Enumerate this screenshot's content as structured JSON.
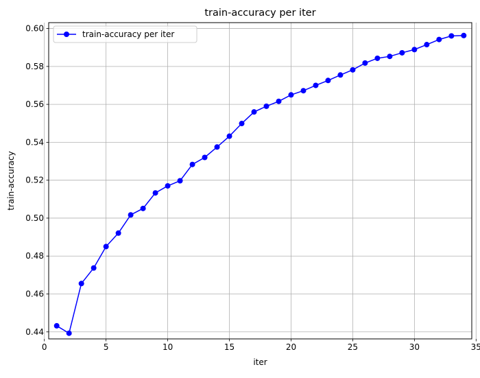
{
  "chart_data": {
    "type": "line",
    "title": "train-accuracy per iter",
    "xlabel": "iter",
    "ylabel": "train-accuracy",
    "x": [
      1,
      2,
      3,
      4,
      5,
      6,
      7,
      8,
      9,
      10,
      11,
      12,
      13,
      14,
      15,
      16,
      17,
      18,
      19,
      20,
      21,
      22,
      23,
      24,
      25,
      26,
      27,
      28,
      29,
      30,
      31,
      32,
      33,
      34
    ],
    "series": [
      {
        "name": "train-accuracy per iter",
        "color": "#0000ff",
        "marker": "circle",
        "values": [
          0.4432,
          0.4393,
          0.4655,
          0.4737,
          0.485,
          0.4921,
          0.5017,
          0.5051,
          0.5133,
          0.517,
          0.5197,
          0.5283,
          0.532,
          0.5375,
          0.5432,
          0.5499,
          0.556,
          0.559,
          0.5616,
          0.565,
          0.5672,
          0.57,
          0.5726,
          0.5755,
          0.5782,
          0.5818,
          0.5843,
          0.5853,
          0.5872,
          0.5889,
          0.5915,
          0.5942,
          0.5961,
          0.5963
        ]
      }
    ],
    "xlim": [
      0.35,
      34.65
    ],
    "ylim": [
      0.4363,
      0.6031
    ],
    "xticks": [
      0,
      5,
      10,
      15,
      20,
      25,
      30,
      35
    ],
    "yticks": [
      0.44,
      0.46,
      0.48,
      0.5,
      0.52,
      0.54,
      0.56,
      0.58,
      0.6
    ],
    "ytick_labels": [
      "0.44",
      "0.46",
      "0.48",
      "0.50",
      "0.52",
      "0.54",
      "0.56",
      "0.58",
      "0.60"
    ],
    "grid": true,
    "legend": "upper left"
  }
}
